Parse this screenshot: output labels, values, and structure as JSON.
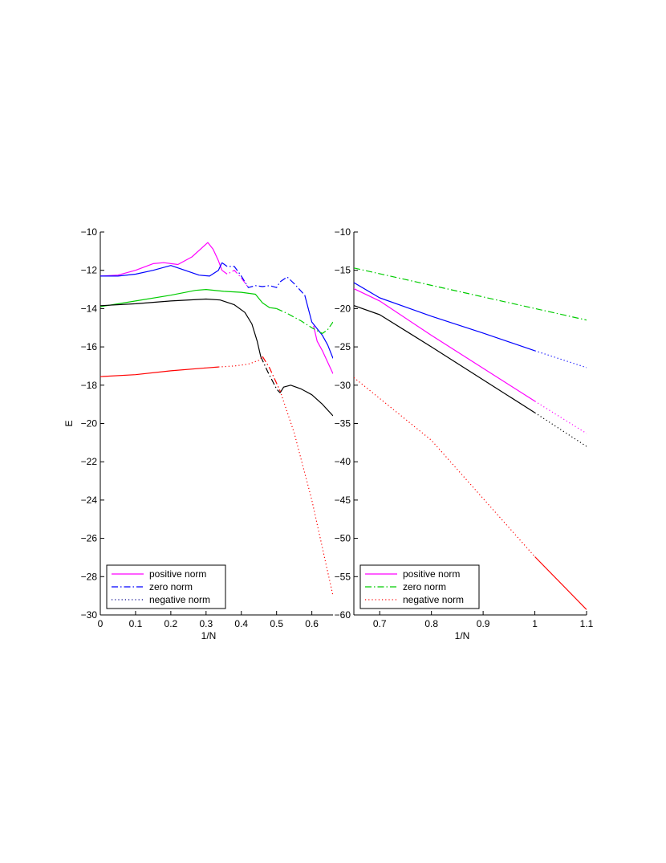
{
  "chart_data": [
    {
      "type": "line",
      "xlabel": "1/N",
      "ylabel": "E",
      "xlim": [
        0,
        0.66
      ],
      "ylim": [
        -30,
        -10
      ],
      "xticks": [
        0,
        0.1,
        0.2,
        0.3,
        0.4,
        0.5,
        0.6
      ],
      "xtick_labels": [
        "0",
        "0.1",
        "0.2",
        "0.3",
        "0.4",
        "0.5",
        "0.6"
      ],
      "yticks": [
        -30,
        -28,
        -26,
        -24,
        -22,
        -20,
        -18,
        -16,
        -14,
        -12,
        -10
      ],
      "ytick_labels": [
        "−30",
        "−28",
        "−26",
        "−24",
        "−22",
        "−20",
        "−18",
        "−16",
        "−14",
        "−12",
        "−10"
      ],
      "legend": {
        "placement": "bottom-left",
        "entries": [
          {
            "label": "positive norm",
            "color": "#ff00ff",
            "style": "solid"
          },
          {
            "label": "zero norm",
            "color": "#0000ff",
            "style": "dashdot"
          },
          {
            "label": "negative norm",
            "color": "#00008b",
            "style": "dotted"
          }
        ]
      },
      "segments": [
        {
          "color": "#ff00ff",
          "style": "solid",
          "points": [
            [
              0,
              -12.3
            ],
            [
              0.05,
              -12.25
            ],
            [
              0.1,
              -12.0
            ],
            [
              0.15,
              -11.65
            ],
            [
              0.18,
              -11.6
            ],
            [
              0.22,
              -11.7
            ],
            [
              0.26,
              -11.3
            ],
            [
              0.29,
              -10.8
            ],
            [
              0.305,
              -10.55
            ],
            [
              0.32,
              -10.9
            ],
            [
              0.335,
              -11.5
            ],
            [
              0.345,
              -12.0
            ]
          ]
        },
        {
          "color": "#ff00ff",
          "style": "dashdot",
          "points": [
            [
              0.345,
              -12.0
            ],
            [
              0.36,
              -12.2
            ],
            [
              0.38,
              -12.0
            ],
            [
              0.4,
              -12.4
            ],
            [
              0.42,
              -12.9
            ]
          ]
        },
        {
          "color": "#ff00ff",
          "style": "solid",
          "points": [
            [
              0.605,
              -14.9
            ],
            [
              0.615,
              -15.7
            ],
            [
              0.63,
              -16.2
            ],
            [
              0.645,
              -16.8
            ],
            [
              0.66,
              -17.4
            ]
          ]
        },
        {
          "color": "#0000ff",
          "style": "solid",
          "points": [
            [
              0,
              -12.3
            ],
            [
              0.05,
              -12.3
            ],
            [
              0.1,
              -12.2
            ],
            [
              0.15,
              -12.0
            ],
            [
              0.2,
              -11.75
            ],
            [
              0.24,
              -12.0
            ],
            [
              0.28,
              -12.25
            ],
            [
              0.31,
              -12.3
            ],
            [
              0.335,
              -12.0
            ],
            [
              0.345,
              -11.6
            ]
          ]
        },
        {
          "color": "#0000ff",
          "style": "dashdot",
          "points": [
            [
              0.345,
              -11.6
            ],
            [
              0.36,
              -11.8
            ],
            [
              0.38,
              -11.8
            ],
            [
              0.4,
              -12.3
            ],
            [
              0.42,
              -12.9
            ],
            [
              0.44,
              -12.8
            ],
            [
              0.46,
              -12.85
            ],
            [
              0.48,
              -12.8
            ],
            [
              0.5,
              -12.9
            ],
            [
              0.51,
              -12.6
            ],
            [
              0.53,
              -12.35
            ],
            [
              0.55,
              -12.7
            ],
            [
              0.58,
              -13.3
            ]
          ]
        },
        {
          "color": "#0000ff",
          "style": "solid",
          "points": [
            [
              0.58,
              -13.3
            ],
            [
              0.6,
              -14.7
            ],
            [
              0.63,
              -15.4
            ],
            [
              0.645,
              -15.9
            ],
            [
              0.66,
              -16.6
            ]
          ]
        },
        {
          "color": "#00cc00",
          "style": "solid",
          "points": [
            [
              0,
              -13.9
            ],
            [
              0.1,
              -13.6
            ],
            [
              0.2,
              -13.3
            ],
            [
              0.27,
              -13.05
            ],
            [
              0.3,
              -13.0
            ],
            [
              0.35,
              -13.1
            ],
            [
              0.4,
              -13.15
            ],
            [
              0.44,
              -13.25
            ],
            [
              0.46,
              -13.7
            ],
            [
              0.48,
              -13.95
            ],
            [
              0.5,
              -14.0
            ]
          ]
        },
        {
          "color": "#00cc00",
          "style": "dashdot",
          "points": [
            [
              0.5,
              -14.0
            ],
            [
              0.53,
              -14.25
            ],
            [
              0.57,
              -14.65
            ],
            [
              0.6,
              -15.0
            ],
            [
              0.63,
              -15.3
            ],
            [
              0.645,
              -15.1
            ],
            [
              0.66,
              -14.7
            ]
          ]
        },
        {
          "color": "#000000",
          "style": "solid",
          "points": [
            [
              0,
              -13.85
            ],
            [
              0.1,
              -13.75
            ],
            [
              0.2,
              -13.6
            ],
            [
              0.3,
              -13.5
            ],
            [
              0.34,
              -13.55
            ],
            [
              0.38,
              -13.8
            ],
            [
              0.41,
              -14.2
            ],
            [
              0.43,
              -14.8
            ],
            [
              0.445,
              -15.7
            ],
            [
              0.455,
              -16.5
            ]
          ]
        },
        {
          "color": "#000000",
          "style": "dashdot",
          "points": [
            [
              0.455,
              -16.5
            ],
            [
              0.475,
              -17.3
            ],
            [
              0.5,
              -18.2
            ],
            [
              0.51,
              -18.4
            ]
          ]
        },
        {
          "color": "#000000",
          "style": "solid",
          "points": [
            [
              0.51,
              -18.4
            ],
            [
              0.52,
              -18.1
            ],
            [
              0.54,
              -18.0
            ],
            [
              0.57,
              -18.2
            ],
            [
              0.6,
              -18.5
            ],
            [
              0.63,
              -19.0
            ],
            [
              0.66,
              -19.6
            ]
          ]
        },
        {
          "color": "#ff0000",
          "style": "solid",
          "points": [
            [
              0,
              -17.55
            ],
            [
              0.1,
              -17.45
            ],
            [
              0.2,
              -17.25
            ],
            [
              0.3,
              -17.1
            ],
            [
              0.335,
              -17.05
            ]
          ]
        },
        {
          "color": "#ff0000",
          "style": "dotted",
          "points": [
            [
              0.335,
              -17.05
            ],
            [
              0.38,
              -17.0
            ],
            [
              0.42,
              -16.9
            ],
            [
              0.45,
              -16.7
            ],
            [
              0.46,
              -16.5
            ]
          ]
        },
        {
          "color": "#ff0000",
          "style": "dashdot",
          "points": [
            [
              0.46,
              -16.5
            ],
            [
              0.48,
              -17.1
            ],
            [
              0.5,
              -17.9
            ],
            [
              0.51,
              -18.3
            ]
          ]
        },
        {
          "color": "#ff0000",
          "style": "dotted",
          "points": [
            [
              0.51,
              -18.3
            ],
            [
              0.55,
              -20.5
            ],
            [
              0.6,
              -24.0
            ],
            [
              0.63,
              -26.5
            ],
            [
              0.66,
              -29.0
            ]
          ]
        }
      ]
    },
    {
      "type": "line",
      "xlabel": "1/N",
      "ylabel": "",
      "xlim": [
        0.65,
        1.1
      ],
      "ylim": [
        -60,
        -10
      ],
      "xticks": [
        0.7,
        0.8,
        0.9,
        1.0,
        1.1
      ],
      "xtick_labels": [
        "0.7",
        "0.8",
        "0.9",
        "1",
        "1.1"
      ],
      "yticks": [
        -60,
        -55,
        -50,
        -45,
        -40,
        -35,
        -30,
        -25,
        -20,
        -15,
        -10
      ],
      "ytick_labels": [
        "−60",
        "−55",
        "−50",
        "−45",
        "−40",
        "−35",
        "−30",
        "−25",
        "−20",
        "−15",
        "−10"
      ],
      "legend": {
        "placement": "bottom-left",
        "entries": [
          {
            "label": "positive norm",
            "color": "#ff00ff",
            "style": "solid"
          },
          {
            "label": "zero norm",
            "color": "#00cc00",
            "style": "dashdot"
          },
          {
            "label": "negative norm",
            "color": "#ff0000",
            "style": "dotted"
          }
        ]
      },
      "segments": [
        {
          "color": "#00cc00",
          "style": "dashdot",
          "points": [
            [
              0.65,
              -14.7
            ],
            [
              1.1,
              -21.5
            ]
          ]
        },
        {
          "color": "#0000ff",
          "style": "solid",
          "points": [
            [
              0.65,
              -16.6
            ],
            [
              0.7,
              -18.6
            ],
            [
              0.8,
              -21.0
            ],
            [
              0.9,
              -23.2
            ],
            [
              1.0,
              -25.5
            ]
          ]
        },
        {
          "color": "#0000ff",
          "style": "dotted",
          "points": [
            [
              1.0,
              -25.5
            ],
            [
              1.1,
              -27.7
            ]
          ]
        },
        {
          "color": "#ff00ff",
          "style": "solid",
          "points": [
            [
              0.65,
              -17.4
            ],
            [
              0.7,
              -19.0
            ],
            [
              0.8,
              -23.5
            ],
            [
              0.9,
              -27.8
            ],
            [
              1.0,
              -32.1
            ]
          ]
        },
        {
          "color": "#ff00ff",
          "style": "dotted",
          "points": [
            [
              1.0,
              -32.1
            ],
            [
              1.1,
              -36.3
            ]
          ]
        },
        {
          "color": "#000000",
          "style": "solid",
          "points": [
            [
              0.65,
              -19.6
            ],
            [
              0.7,
              -20.8
            ],
            [
              0.8,
              -25.0
            ],
            [
              0.9,
              -29.3
            ],
            [
              1.0,
              -33.6
            ]
          ]
        },
        {
          "color": "#000000",
          "style": "dotted",
          "points": [
            [
              1.0,
              -33.6
            ],
            [
              1.1,
              -38.0
            ]
          ]
        },
        {
          "color": "#ff0000",
          "style": "dotted",
          "points": [
            [
              0.65,
              -29.0
            ],
            [
              0.8,
              -37.2
            ],
            [
              0.9,
              -44.8
            ],
            [
              1.0,
              -52.4
            ]
          ]
        },
        {
          "color": "#ff0000",
          "style": "solid",
          "points": [
            [
              1.0,
              -52.4
            ],
            [
              1.1,
              -59.3
            ]
          ]
        }
      ]
    }
  ]
}
